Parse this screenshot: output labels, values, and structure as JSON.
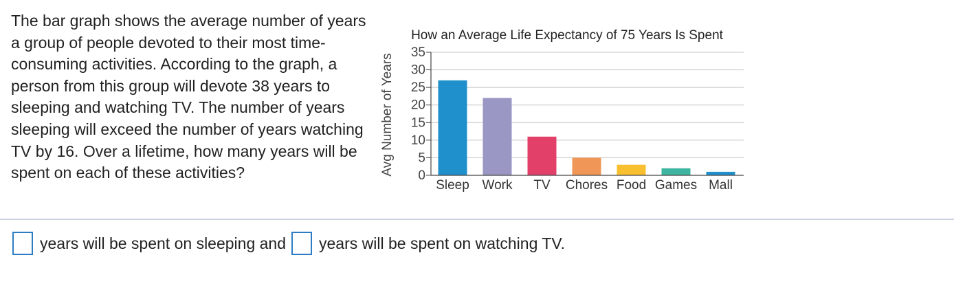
{
  "question": {
    "text": "The bar graph shows the average number of years a group of people devoted to their most time-consuming activities. According to the graph, a person from this group will devote 38 years to sleeping and watching TV. The number of years sleeping will exceed the number of years watching TV by 16. Over a lifetime, how many years will be spent on each of these activities?"
  },
  "answer": {
    "part1": "years will be spent on sleeping and",
    "part2": "years will be spent on watching TV.",
    "sleep_value": "",
    "tv_value": ""
  },
  "colors": {
    "accent": "#2e7dc3",
    "divider": "#c8d2e0"
  },
  "chart_data": {
    "type": "bar",
    "title": "How an Average Life Expectancy of 75 Years Is Spent",
    "xlabel": "",
    "ylabel": "Avg Number of Years",
    "categories": [
      "Sleep",
      "Work",
      "TV",
      "Chores",
      "Food",
      "Games",
      "Mall"
    ],
    "values": [
      27,
      22,
      11,
      5,
      3,
      2,
      1
    ],
    "colors": [
      "#2090cc",
      "#9a97c4",
      "#e23f69",
      "#f09656",
      "#f8c02e",
      "#3eb5a1",
      "#2090cc"
    ],
    "ylim": [
      0,
      35
    ],
    "yticks": [
      0,
      5,
      10,
      15,
      20,
      25,
      30,
      35
    ],
    "grid": true,
    "legend": "none"
  }
}
